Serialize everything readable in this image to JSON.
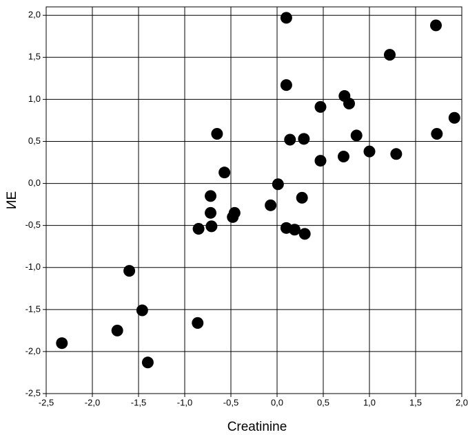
{
  "chart_data": {
    "type": "scatter",
    "x_label": "Creatinine",
    "y_label": "ИЕ",
    "color": "#000000",
    "grid": true,
    "xlim": [
      -2.5,
      2.0
    ],
    "ylim": [
      -2.5,
      2.1
    ],
    "xticks": [
      {
        "value": -2.5,
        "label": "-2,5"
      },
      {
        "value": -2.0,
        "label": "-2,0"
      },
      {
        "value": -1.5,
        "label": "-1,5"
      },
      {
        "value": -1.0,
        "label": "-1,0"
      },
      {
        "value": -0.5,
        "label": "-0,5"
      },
      {
        "value": 0.0,
        "label": "0,0"
      },
      {
        "value": 0.5,
        "label": "0,5"
      },
      {
        "value": 1.0,
        "label": "1,0"
      },
      {
        "value": 1.5,
        "label": "1,5"
      },
      {
        "value": 2.0,
        "label": "2,0"
      }
    ],
    "yticks": [
      {
        "value": -2.5,
        "label": "-2,5"
      },
      {
        "value": -2.0,
        "label": "-2,0"
      },
      {
        "value": -1.5,
        "label": "-1,5"
      },
      {
        "value": -1.0,
        "label": "-1,0"
      },
      {
        "value": -0.5,
        "label": "-0,5"
      },
      {
        "value": 0.0,
        "label": "0,0"
      },
      {
        "value": 0.5,
        "label": "0,5"
      },
      {
        "value": 1.0,
        "label": "1,0"
      },
      {
        "value": 1.5,
        "label": "1,5"
      },
      {
        "value": 2.0,
        "label": "2,0"
      }
    ],
    "x": [
      0.1,
      1.72,
      1.22,
      0.1,
      0.73,
      0.78,
      0.47,
      1.92,
      -0.65,
      1.73,
      0.86,
      0.14,
      0.29,
      1.0,
      1.29,
      0.72,
      0.47,
      -0.57,
      0.01,
      -0.72,
      0.27,
      -0.07,
      -0.72,
      -0.46,
      -0.48,
      -0.71,
      -0.85,
      0.1,
      0.19,
      0.3,
      -1.6,
      -1.46,
      -0.86,
      -1.73,
      -2.33,
      -1.4
    ],
    "values": [
      1.97,
      1.88,
      1.53,
      1.17,
      1.04,
      0.95,
      0.91,
      0.78,
      0.59,
      0.59,
      0.57,
      0.52,
      0.53,
      0.38,
      0.35,
      0.32,
      0.27,
      0.13,
      -0.01,
      -0.15,
      -0.17,
      -0.26,
      -0.35,
      -0.35,
      -0.4,
      -0.51,
      -0.54,
      -0.53,
      -0.55,
      -0.6,
      -1.04,
      -1.51,
      -1.66,
      -1.75,
      -1.9,
      -2.13
    ]
  }
}
